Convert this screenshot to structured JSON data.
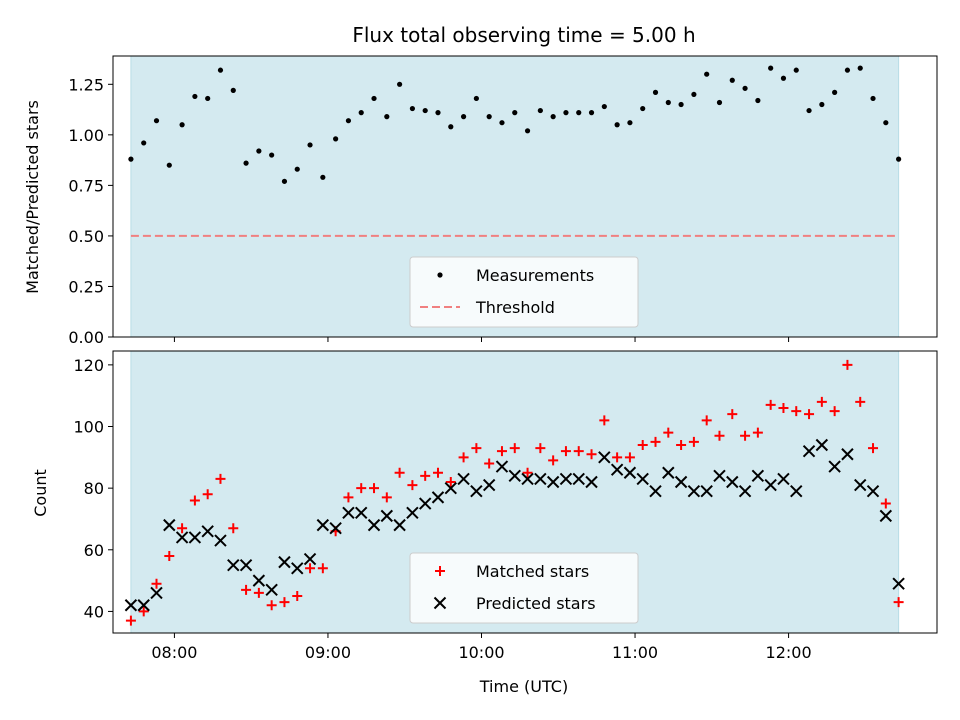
{
  "figure": {
    "title": "Flux total observing time = 5.00 h",
    "shade_color": "#d4eaf0"
  },
  "chart_data": [
    {
      "type": "scatter",
      "ylabel": "Matched/Predicted stars",
      "ylim": [
        0,
        1.39
      ],
      "yticks": [
        0,
        0.25,
        0.5,
        0.75,
        1.0,
        1.25
      ],
      "ytick_labels": [
        "0.00",
        "0.25",
        "0.50",
        "0.75",
        "1.00",
        "1.25"
      ],
      "xlim": [
        "07:36",
        "12:58"
      ],
      "shaded_span": [
        "07:43",
        "12:43"
      ],
      "grid": false,
      "legend_position": "lower-center",
      "series": [
        {
          "name": "Measurements",
          "marker": "dot",
          "color": "#000000",
          "x": [
            "07:43",
            "07:48",
            "07:53",
            "07:58",
            "08:03",
            "08:08",
            "08:13",
            "08:18",
            "08:23",
            "08:28",
            "08:33",
            "08:38",
            "08:43",
            "08:48",
            "08:53",
            "08:58",
            "09:03",
            "09:08",
            "09:13",
            "09:18",
            "09:23",
            "09:28",
            "09:33",
            "09:38",
            "09:43",
            "09:48",
            "09:53",
            "09:58",
            "10:03",
            "10:08",
            "10:13",
            "10:18",
            "10:23",
            "10:28",
            "10:33",
            "10:38",
            "10:43",
            "10:48",
            "10:53",
            "10:58",
            "11:03",
            "11:08",
            "11:13",
            "11:18",
            "11:23",
            "11:28",
            "11:33",
            "11:38",
            "11:43",
            "11:48",
            "11:53",
            "11:58",
            "12:03",
            "12:08",
            "12:13",
            "12:18",
            "12:23",
            "12:28",
            "12:33",
            "12:38",
            "12:43"
          ],
          "y": [
            0.88,
            0.96,
            1.07,
            0.85,
            1.05,
            1.19,
            1.18,
            1.32,
            1.22,
            0.86,
            0.92,
            0.9,
            0.77,
            0.83,
            0.95,
            0.79,
            0.98,
            1.07,
            1.11,
            1.18,
            1.09,
            1.25,
            1.13,
            1.12,
            1.11,
            1.04,
            1.09,
            1.18,
            1.09,
            1.06,
            1.11,
            1.02,
            1.12,
            1.09,
            1.11,
            1.11,
            1.11,
            1.14,
            1.05,
            1.06,
            1.13,
            1.21,
            1.16,
            1.15,
            1.2,
            1.3,
            1.16,
            1.27,
            1.23,
            1.17,
            1.33,
            1.28,
            1.32,
            1.12,
            1.15,
            1.21,
            1.32,
            1.33,
            1.18,
            1.06,
            0.88
          ]
        },
        {
          "name": "Threshold",
          "style": "dashed-line",
          "color": "#f08080",
          "y": 0.5
        }
      ]
    },
    {
      "type": "scatter",
      "xlabel": "Time (UTC)",
      "ylabel": "Count",
      "ylim": [
        33,
        124.5
      ],
      "yticks": [
        40,
        60,
        80,
        100,
        120
      ],
      "ytick_labels": [
        "40",
        "60",
        "80",
        "100",
        "120"
      ],
      "xticks": [
        "08:00",
        "09:00",
        "10:00",
        "11:00",
        "12:00"
      ],
      "xlim": [
        "07:36",
        "12:58"
      ],
      "shaded_span": [
        "07:43",
        "12:43"
      ],
      "grid": false,
      "legend_position": "lower-center",
      "series": [
        {
          "name": "Matched stars",
          "marker": "plus",
          "color": "#ff0000",
          "x": [
            "07:43",
            "07:48",
            "07:53",
            "07:58",
            "08:03",
            "08:08",
            "08:13",
            "08:18",
            "08:23",
            "08:28",
            "08:33",
            "08:38",
            "08:43",
            "08:48",
            "08:53",
            "08:58",
            "09:03",
            "09:08",
            "09:13",
            "09:18",
            "09:23",
            "09:28",
            "09:33",
            "09:38",
            "09:43",
            "09:48",
            "09:53",
            "09:58",
            "10:03",
            "10:08",
            "10:13",
            "10:18",
            "10:23",
            "10:28",
            "10:33",
            "10:38",
            "10:43",
            "10:48",
            "10:53",
            "10:58",
            "11:03",
            "11:08",
            "11:13",
            "11:18",
            "11:23",
            "11:28",
            "11:33",
            "11:38",
            "11:43",
            "11:48",
            "11:53",
            "11:58",
            "12:03",
            "12:08",
            "12:13",
            "12:18",
            "12:23",
            "12:28",
            "12:33",
            "12:38",
            "12:43"
          ],
          "y": [
            37,
            40,
            49,
            58,
            67,
            76,
            78,
            83,
            67,
            47,
            46,
            42,
            43,
            45,
            54,
            54,
            66,
            77,
            80,
            80,
            77,
            85,
            81,
            84,
            85,
            82,
            90,
            93,
            88,
            92,
            93,
            85,
            93,
            89,
            92,
            92,
            91,
            102,
            90,
            90,
            94,
            95,
            98,
            94,
            95,
            102,
            97,
            104,
            97,
            98,
            107,
            106,
            105,
            104,
            108,
            105,
            120,
            108,
            93,
            75,
            43
          ]
        },
        {
          "name": "Predicted stars",
          "marker": "x",
          "color": "#000000",
          "x": [
            "07:43",
            "07:48",
            "07:53",
            "07:58",
            "08:03",
            "08:08",
            "08:13",
            "08:18",
            "08:23",
            "08:28",
            "08:33",
            "08:38",
            "08:43",
            "08:48",
            "08:53",
            "08:58",
            "09:03",
            "09:08",
            "09:13",
            "09:18",
            "09:23",
            "09:28",
            "09:33",
            "09:38",
            "09:43",
            "09:48",
            "09:53",
            "09:58",
            "10:03",
            "10:08",
            "10:13",
            "10:18",
            "10:23",
            "10:28",
            "10:33",
            "10:38",
            "10:43",
            "10:48",
            "10:53",
            "10:58",
            "11:03",
            "11:08",
            "11:13",
            "11:18",
            "11:23",
            "11:28",
            "11:33",
            "11:38",
            "11:43",
            "11:48",
            "11:53",
            "11:58",
            "12:03",
            "12:08",
            "12:13",
            "12:18",
            "12:23",
            "12:28",
            "12:33",
            "12:38",
            "12:43"
          ],
          "y": [
            42,
            42,
            46,
            68,
            64,
            64,
            66,
            63,
            55,
            55,
            50,
            47,
            56,
            54,
            57,
            68,
            67,
            72,
            72,
            68,
            71,
            68,
            72,
            75,
            77,
            80,
            83,
            79,
            81,
            87,
            84,
            83,
            83,
            82,
            83,
            83,
            82,
            90,
            86,
            85,
            83,
            79,
            85,
            82,
            79,
            79,
            84,
            82,
            79,
            84,
            81,
            83,
            79,
            92,
            94,
            87,
            91,
            81,
            79,
            71,
            49
          ]
        }
      ]
    }
  ]
}
